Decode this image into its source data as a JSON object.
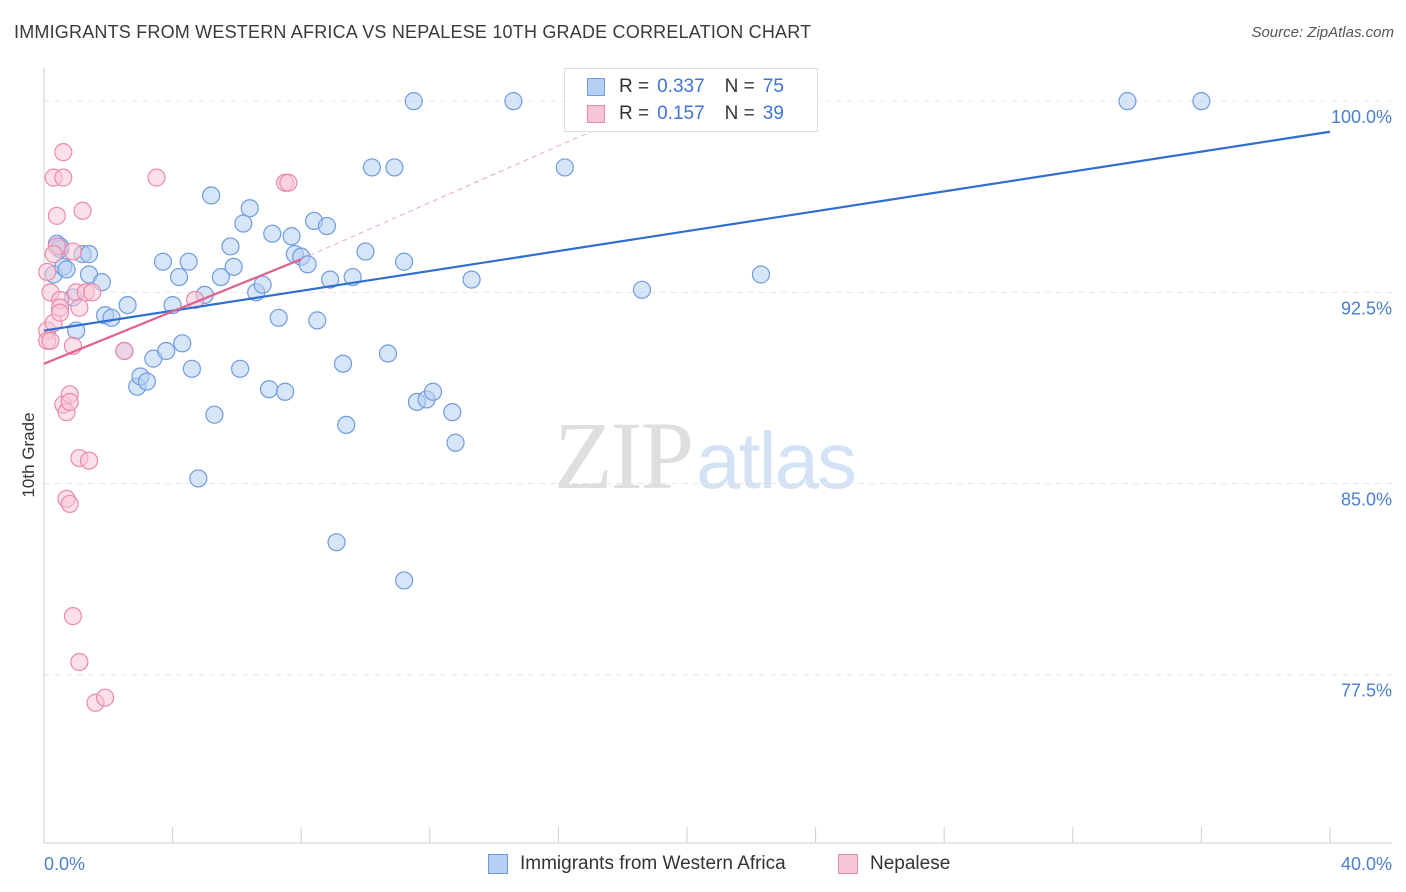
{
  "header": {
    "title": "IMMIGRANTS FROM WESTERN AFRICA VS NEPALESE 10TH GRADE CORRELATION CHART",
    "source": "Source: ZipAtlas.com"
  },
  "watermark": {
    "zip": "ZIP",
    "atlas": "atlas"
  },
  "legend": {
    "series1": {
      "r_label": "R =",
      "r_value": "0.337",
      "n_label": "N =",
      "n_value": "75"
    },
    "series2": {
      "r_label": "R =",
      "r_value": "0.157",
      "n_label": "N =",
      "n_value": "39"
    }
  },
  "bottom_legend": {
    "series1": "Immigrants from Western Africa",
    "series2": "Nepalese"
  },
  "colors": {
    "blue_fill": "#b7cff3",
    "blue_stroke": "#6f9be0",
    "blue_line": "#2f6fd0",
    "pink_fill": "#f7c6d6",
    "pink_stroke": "#ea8aab",
    "pink_line": "#e0608f",
    "grid": "#e6e6e6",
    "tick_text": "#4a7fd0"
  },
  "chart_data": {
    "type": "scatter",
    "title": "IMMIGRANTS FROM WESTERN AFRICA VS NEPALESE 10TH GRADE CORRELATION CHART",
    "xlabel": "",
    "ylabel": "10th Grade",
    "xlim": [
      0,
      40
    ],
    "ylim": [
      70.9,
      101.3
    ],
    "x_tick_labels": [
      {
        "value": 0,
        "label": "0.0%"
      },
      {
        "value": 40,
        "label": "40.0%"
      }
    ],
    "y_tick_labels": [
      {
        "value": 100.0,
        "label": "100.0%"
      },
      {
        "value": 92.5,
        "label": "92.5%"
      },
      {
        "value": 85.0,
        "label": "85.0%"
      },
      {
        "value": 77.5,
        "label": "77.5%"
      }
    ],
    "y_gridlines": [
      100.0,
      92.5,
      85.0,
      77.5
    ],
    "x_minor_ticks": [
      4,
      8,
      12,
      16,
      20,
      24,
      28,
      32,
      36,
      40
    ],
    "series": [
      {
        "name": "Immigrants from Western Africa",
        "color": "blue",
        "trend": {
          "x": [
            0,
            40
          ],
          "y": [
            91.0,
            98.8
          ]
        },
        "points": [
          [
            0.3,
            93.2
          ],
          [
            0.4,
            94.4
          ],
          [
            0.5,
            94.2
          ],
          [
            0.6,
            93.5
          ],
          [
            0.7,
            93.4
          ],
          [
            0.9,
            92.3
          ],
          [
            1.0,
            91.0
          ],
          [
            1.2,
            94.0
          ],
          [
            1.4,
            94.0
          ],
          [
            1.4,
            93.2
          ],
          [
            1.9,
            91.6
          ],
          [
            2.1,
            91.5
          ],
          [
            2.6,
            92.0
          ],
          [
            2.5,
            90.2
          ],
          [
            2.9,
            88.8
          ],
          [
            3.0,
            89.2
          ],
          [
            3.2,
            89.0
          ],
          [
            3.4,
            89.9
          ],
          [
            3.7,
            93.7
          ],
          [
            3.8,
            90.2
          ],
          [
            4.0,
            92.0
          ],
          [
            4.2,
            93.1
          ],
          [
            4.3,
            90.5
          ],
          [
            4.5,
            93.7
          ],
          [
            4.6,
            89.5
          ],
          [
            5.0,
            92.4
          ],
          [
            5.2,
            96.3
          ],
          [
            5.3,
            87.7
          ],
          [
            4.8,
            85.2
          ],
          [
            5.5,
            93.1
          ],
          [
            5.8,
            94.3
          ],
          [
            5.9,
            93.5
          ],
          [
            6.1,
            89.5
          ],
          [
            6.2,
            95.2
          ],
          [
            6.4,
            95.8
          ],
          [
            6.6,
            92.5
          ],
          [
            6.8,
            92.8
          ],
          [
            7.0,
            88.7
          ],
          [
            7.1,
            94.8
          ],
          [
            7.3,
            91.5
          ],
          [
            7.5,
            88.6
          ],
          [
            7.7,
            94.7
          ],
          [
            7.8,
            94.0
          ],
          [
            8.0,
            93.9
          ],
          [
            8.2,
            93.6
          ],
          [
            8.4,
            95.3
          ],
          [
            8.5,
            91.4
          ],
          [
            8.8,
            95.1
          ],
          [
            8.9,
            93.0
          ],
          [
            9.1,
            82.7
          ],
          [
            9.3,
            89.7
          ],
          [
            9.4,
            87.3
          ],
          [
            9.6,
            93.1
          ],
          [
            10.0,
            94.1
          ],
          [
            10.2,
            97.4
          ],
          [
            10.7,
            90.1
          ],
          [
            10.9,
            97.4
          ],
          [
            11.2,
            93.7
          ],
          [
            11.2,
            81.2
          ],
          [
            11.5,
            100.0
          ],
          [
            11.6,
            88.2
          ],
          [
            11.9,
            88.3
          ],
          [
            12.1,
            88.6
          ],
          [
            12.7,
            87.8
          ],
          [
            12.8,
            86.6
          ],
          [
            13.3,
            93.0
          ],
          [
            14.6,
            100.0
          ],
          [
            16.2,
            97.4
          ],
          [
            16.8,
            100.0
          ],
          [
            18.6,
            92.6
          ],
          [
            22.3,
            93.2
          ],
          [
            33.7,
            100.0
          ],
          [
            36.0,
            100.0
          ],
          [
            0.5,
            94.3
          ],
          [
            1.8,
            92.9
          ]
        ]
      },
      {
        "name": "Nepalese",
        "color": "pink",
        "trend": {
          "x": [
            0,
            8.0
          ],
          "y": [
            89.7,
            93.8
          ]
        },
        "extension": {
          "x": [
            8.0,
            17.0
          ],
          "y": [
            93.8,
            98.8
          ]
        },
        "points": [
          [
            0.1,
            93.3
          ],
          [
            0.1,
            91.0
          ],
          [
            0.1,
            90.6
          ],
          [
            0.2,
            90.6
          ],
          [
            0.2,
            92.5
          ],
          [
            0.3,
            91.3
          ],
          [
            0.3,
            97.0
          ],
          [
            0.4,
            95.5
          ],
          [
            0.4,
            94.3
          ],
          [
            0.5,
            92.2
          ],
          [
            0.5,
            91.9
          ],
          [
            0.5,
            91.7
          ],
          [
            0.6,
            98.0
          ],
          [
            0.6,
            97.0
          ],
          [
            0.6,
            88.1
          ],
          [
            0.7,
            87.8
          ],
          [
            0.7,
            84.4
          ],
          [
            0.8,
            84.2
          ],
          [
            0.8,
            88.5
          ],
          [
            0.8,
            88.2
          ],
          [
            0.9,
            94.1
          ],
          [
            0.9,
            79.8
          ],
          [
            0.9,
            90.4
          ],
          [
            1.0,
            92.5
          ],
          [
            1.1,
            78.0
          ],
          [
            1.1,
            86.0
          ],
          [
            1.2,
            95.7
          ],
          [
            1.3,
            92.5
          ],
          [
            1.4,
            85.9
          ],
          [
            1.5,
            92.5
          ],
          [
            1.6,
            76.4
          ],
          [
            1.9,
            76.6
          ],
          [
            2.5,
            90.2
          ],
          [
            3.5,
            97.0
          ],
          [
            4.7,
            92.2
          ],
          [
            7.5,
            96.8
          ],
          [
            7.6,
            96.8
          ],
          [
            0.3,
            94.0
          ],
          [
            1.1,
            91.9
          ]
        ]
      }
    ]
  }
}
